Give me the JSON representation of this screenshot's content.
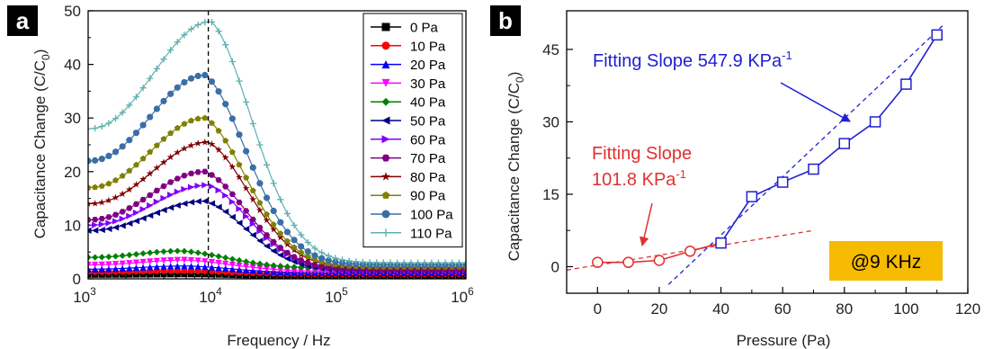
{
  "chart_data": [
    {
      "type": "line",
      "panel_label": "a",
      "xlabel": "Frequency / Hz",
      "ylabel": "Capacitance Change (C/C",
      "ylabel_sub": "0",
      "ylabel_end": ")",
      "x_scale": "log",
      "xlim": [
        1000,
        1000000
      ],
      "ylim": [
        0,
        50
      ],
      "x_ticks": [
        {
          "value": 1000,
          "base": "10",
          "exp": "3"
        },
        {
          "value": 10000,
          "base": "10",
          "exp": "4"
        },
        {
          "value": 100000,
          "base": "10",
          "exp": "5"
        },
        {
          "value": 1000000,
          "base": "10",
          "exp": "6"
        }
      ],
      "y_ticks": [
        "0",
        "10",
        "20",
        "30",
        "40",
        "50"
      ],
      "y_tick_values": [
        0,
        10,
        20,
        30,
        40,
        50
      ],
      "reference_line_x": 9000,
      "reference_line_style": "dashed",
      "legend_position": "top-right",
      "series": [
        {
          "name": "0 Pa",
          "color": "#000000",
          "marker": "square",
          "base": 0.8,
          "peak": 0.9,
          "peak_x": 7000,
          "tail": 0.5
        },
        {
          "name": "10 Pa",
          "color": "#ff0000",
          "marker": "circle",
          "base": 1.3,
          "peak": 1.5,
          "peak_x": 6000,
          "tail": 0.9
        },
        {
          "name": "20 Pa",
          "color": "#0000ff",
          "marker": "triangle-up",
          "base": 1.8,
          "peak": 2.4,
          "peak_x": 6000,
          "tail": 1.1
        },
        {
          "name": "30 Pa",
          "color": "#ff00ff",
          "marker": "triangle-down",
          "base": 2.6,
          "peak": 3.5,
          "peak_x": 6000,
          "tail": 1.4
        },
        {
          "name": "40 Pa",
          "color": "#008000",
          "marker": "diamond",
          "base": 4.0,
          "peak": 5.2,
          "peak_x": 5500,
          "tail": 2.0
        },
        {
          "name": "50 Pa",
          "color": "#000080",
          "marker": "triangle-left",
          "base": 9.0,
          "peak": 14.5,
          "peak_x": 8500,
          "tail": 1.5
        },
        {
          "name": "60 Pa",
          "color": "#8000ff",
          "marker": "triangle-right",
          "base": 10.0,
          "peak": 17.5,
          "peak_x": 9000,
          "tail": 1.6
        },
        {
          "name": "70 Pa",
          "color": "#800080",
          "marker": "hexagon",
          "base": 11.0,
          "peak": 20.0,
          "peak_x": 8500,
          "tail": 1.7
        },
        {
          "name": "80 Pa",
          "color": "#800000",
          "marker": "star",
          "base": 14.0,
          "peak": 25.5,
          "peak_x": 9000,
          "tail": 2.0
        },
        {
          "name": "90 Pa",
          "color": "#808000",
          "marker": "pentagon",
          "base": 17.0,
          "peak": 30.0,
          "peak_x": 8500,
          "tail": 2.2
        },
        {
          "name": "100 Pa",
          "color": "#3a6ea5",
          "marker": "sphere",
          "base": 22.0,
          "peak": 38.0,
          "peak_x": 8500,
          "tail": 2.6
        },
        {
          "name": "110 Pa",
          "color": "#5fb0b0",
          "marker": "plus",
          "base": 28.0,
          "peak": 48.0,
          "peak_x": 9500,
          "tail": 3.0
        }
      ]
    },
    {
      "type": "scatter",
      "panel_label": "b",
      "xlabel": "Pressure (Pa)",
      "ylabel": "Capacitance Change (C/C",
      "ylabel_sub": "0",
      "ylabel_end": ")",
      "xlim": [
        -10,
        120
      ],
      "ylim": [
        -5.5,
        53
      ],
      "x_ticks": [
        "0",
        "20",
        "40",
        "60",
        "80",
        "100",
        "120"
      ],
      "x_tick_values": [
        0,
        20,
        40,
        60,
        80,
        100,
        120
      ],
      "y_ticks": [
        "0",
        "15",
        "30",
        "45"
      ],
      "y_tick_values": [
        0,
        15,
        30,
        45
      ],
      "series": [
        {
          "color": "#e03030",
          "marker": "circle-open",
          "x": [
            0,
            10,
            20,
            30,
            40
          ],
          "y": [
            0.9,
            0.9,
            1.3,
            3.2,
            4.9
          ]
        },
        {
          "color": "#2020d0",
          "marker": "square-open",
          "x": [
            40,
            50,
            60,
            70,
            80,
            90,
            100,
            110
          ],
          "y": [
            4.9,
            14.5,
            17.5,
            20.2,
            25.5,
            30.0,
            37.8,
            48.0
          ]
        }
      ],
      "fit_lines": [
        {
          "color": "#e03030",
          "x": [
            -10,
            70
          ],
          "y": [
            -0.7,
            7.5
          ]
        },
        {
          "color": "#2020d0",
          "x": [
            23,
            112
          ],
          "y": [
            -3.7,
            50.0
          ]
        }
      ],
      "annotations": [
        {
          "text": "Fitting Slope 547.9 KPa",
          "sup": "-1",
          "color": "#2020d0"
        },
        {
          "text": "Fitting Slope",
          "color": "#e03030"
        },
        {
          "text": "101.8 KPa",
          "sup": "-1",
          "color": "#e03030"
        }
      ],
      "badge": {
        "text": "@9 KHz",
        "background": "#f6bb00"
      }
    }
  ]
}
